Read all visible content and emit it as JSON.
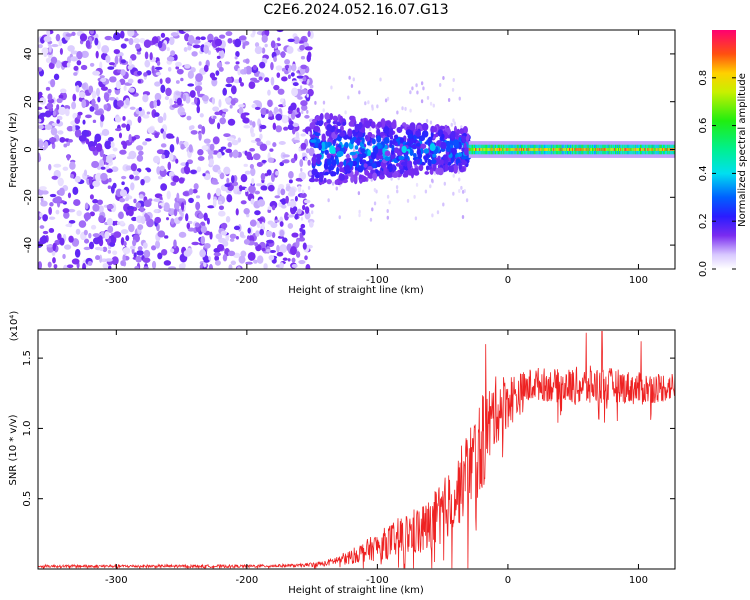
{
  "title": "C2E6.2024.052.16.07.G13",
  "chart_data": [
    {
      "type": "heatmap",
      "xlabel": "Height of straight line (km)",
      "ylabel": "Frequency (Hz)",
      "xlim": [
        -360,
        128
      ],
      "ylim": [
        -50,
        50
      ],
      "xticks": [
        -300,
        -200,
        -100,
        0,
        100
      ],
      "yticks": [
        -40,
        -20,
        0,
        20,
        40
      ],
      "colorbar": {
        "label": "Normalized spectral amplitude",
        "range": [
          0,
          1
        ],
        "ticks": [
          "0.0",
          "0.2",
          "0.4",
          "0.6",
          "0.8"
        ]
      },
      "regions": [
        {
          "x_range": [
            -360,
            -150
          ],
          "freq_spread": [
            -50,
            50
          ],
          "amplitude": "0.05-0.15"
        },
        {
          "x_range": [
            -150,
            -30
          ],
          "freq_center": 0,
          "freq_halfwidth_start": 15,
          "freq_halfwidth_end": 8,
          "amplitude": "0.1-0.4"
        },
        {
          "x_range": [
            -30,
            128
          ],
          "freq_center": 0,
          "freq_halfwidth": 2,
          "amplitude": "0.6-0.95"
        }
      ]
    },
    {
      "type": "line",
      "xlabel": "Height of straight line (km)",
      "ylabel": "SNR (10 * v/v)",
      "y_multiplier_label": "(x10⁴)",
      "xlim": [
        -360,
        128
      ],
      "ylim": [
        0,
        1.7
      ],
      "xticks": [
        -300,
        -200,
        -100,
        0,
        100
      ],
      "yticks": [
        "0.5",
        "1.0",
        "1.5"
      ],
      "series": [
        {
          "color": "#ee2222",
          "x": [
            -360,
            -300,
            -250,
            -200,
            -160,
            -140,
            -120,
            -100,
            -80,
            -60,
            -40,
            -30,
            -20,
            -10,
            0,
            10,
            20,
            40,
            60,
            80,
            100,
            128
          ],
          "y": [
            0.02,
            0.02,
            0.02,
            0.02,
            0.025,
            0.04,
            0.09,
            0.16,
            0.24,
            0.3,
            0.52,
            0.72,
            0.88,
            1.12,
            1.2,
            1.25,
            1.32,
            1.3,
            1.3,
            1.31,
            1.28,
            1.3
          ],
          "noise_amplitude": [
            0.01,
            0.01,
            0.01,
            0.01,
            0.01,
            0.02,
            0.05,
            0.1,
            0.15,
            0.2,
            0.25,
            0.3,
            0.35,
            0.25,
            0.2,
            0.15,
            0.12,
            0.12,
            0.15,
            0.12,
            0.12,
            0.1
          ],
          "peaks": [
            {
              "x": -17,
              "y": 1.6
            },
            {
              "x": 60,
              "y": 1.68
            },
            {
              "x": 72,
              "y": 1.69
            },
            {
              "x": 102,
              "y": 1.62
            }
          ]
        }
      ]
    }
  ]
}
